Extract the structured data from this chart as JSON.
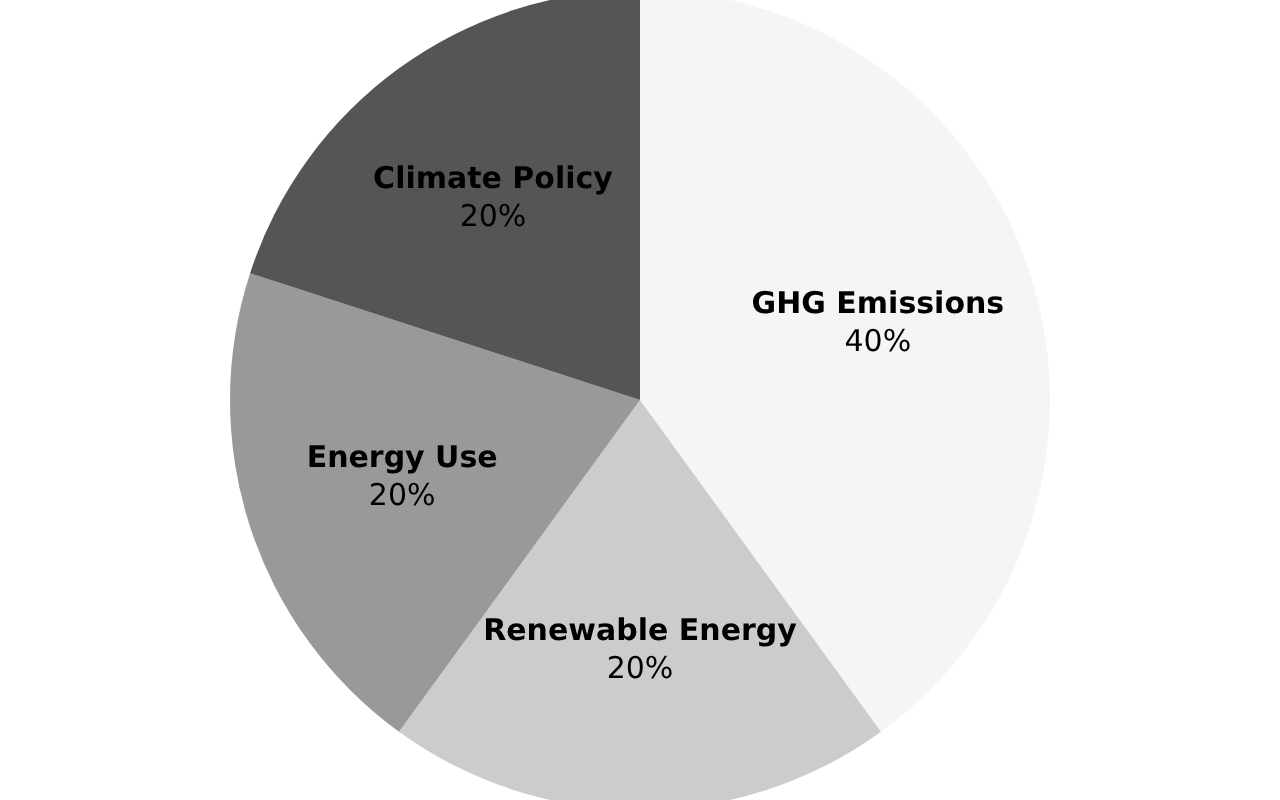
{
  "chart_data": {
    "type": "pie",
    "categories": [
      "GHG Emissions",
      "Renewable Energy",
      "Energy Use",
      "Climate Policy"
    ],
    "values": [
      40,
      20,
      20,
      20
    ],
    "colors": [
      "#f5f5f5",
      "#cccccc",
      "#999999",
      "#555555"
    ],
    "value_labels": [
      "40%",
      "20%",
      "20%",
      "20%"
    ]
  }
}
